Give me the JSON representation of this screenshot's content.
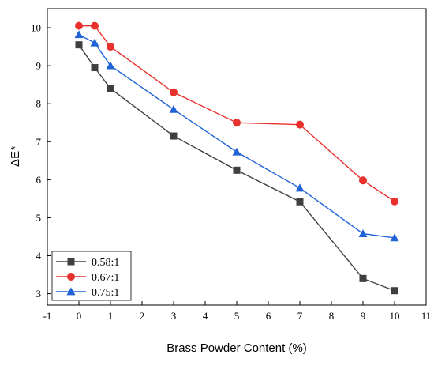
{
  "chart_data": {
    "type": "line",
    "xlabel": "Brass Powder Content (%)",
    "ylabel_main": "ΔE",
    "ylabel_star": "*",
    "xlim": [
      -1,
      11
    ],
    "ylim": [
      2.7,
      10.5
    ],
    "xticks": [
      -1,
      0,
      1,
      2,
      3,
      4,
      5,
      6,
      7,
      8,
      9,
      10,
      11
    ],
    "yticks": [
      3,
      4,
      5,
      6,
      7,
      8,
      9,
      10
    ],
    "grid": false,
    "legend_position": "bottom-left",
    "x": [
      0,
      0.5,
      1,
      3,
      5,
      7,
      9,
      10
    ],
    "series": [
      {
        "name": "0.58:1",
        "marker": "square",
        "color": "#3f3f3f",
        "values": [
          9.55,
          8.95,
          8.4,
          7.15,
          6.25,
          5.42,
          3.4,
          3.08
        ]
      },
      {
        "name": "0.67:1",
        "marker": "circle",
        "color": "#e8302c",
        "values": [
          10.05,
          10.05,
          9.5,
          8.3,
          7.5,
          7.45,
          5.98,
          5.43
        ]
      },
      {
        "name": "0.75:1",
        "marker": "triangle",
        "color": "#1f63d6",
        "values": [
          9.82,
          9.6,
          9.0,
          7.85,
          6.73,
          5.78,
          4.58,
          4.47
        ]
      }
    ]
  }
}
